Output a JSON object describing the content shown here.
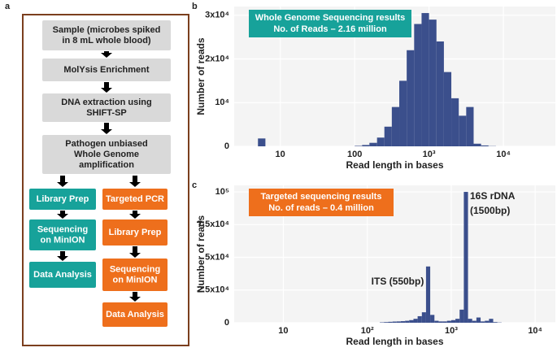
{
  "panel_labels": [
    "a",
    "b",
    "c"
  ],
  "flowchart": {
    "nodes": [
      {
        "lines": [
          "Sample (microbes spiked",
          "in 8 mL whole blood)"
        ]
      },
      {
        "lines": [
          "MolYsis Enrichment"
        ]
      },
      {
        "lines": [
          "DNA extraction using",
          "SHIFT-SP"
        ]
      },
      {
        "lines": [
          "Pathogen unbiased",
          "Whole Genome",
          "amplification"
        ]
      },
      {
        "lines": [
          "Library Prep"
        ]
      },
      {
        "lines": [
          "Sequencing",
          "on MinION"
        ]
      },
      {
        "lines": [
          "Data Analysis"
        ]
      },
      {
        "lines": [
          "Targeted PCR"
        ]
      },
      {
        "lines": [
          "Library Prep"
        ]
      },
      {
        "lines": [
          "Sequencing",
          "on MinION"
        ]
      },
      {
        "lines": [
          "Data Analysis"
        ]
      }
    ]
  },
  "chart_data": [
    {
      "type": "histogram",
      "x_label": "Read length in bases",
      "y_label": "Number of reads",
      "annotation_box": {
        "lines": [
          "Whole Genome Sequencing results",
          "No. of Reads – 2.16 million"
        ],
        "color": "#17a29a"
      },
      "color": "#3b4f8c",
      "log_x": true,
      "grid": true,
      "xlim": [
        2.4,
        50000
      ],
      "xticks": [
        10,
        100,
        {
          "value": 1000,
          "label": "10³"
        },
        {
          "value": 10000,
          "label": "10⁴"
        }
      ],
      "ylim": [
        0,
        32000
      ],
      "yticks": [
        0,
        {
          "value": 10000,
          "label": "10⁴"
        },
        {
          "value": 20000,
          "label": "2x10⁴"
        },
        {
          "value": 30000,
          "label": "3x10⁴"
        }
      ],
      "bins": [
        3.98,
        5.01,
        6.31,
        7.94,
        10,
        12.6,
        15.8,
        20,
        25.1,
        31.6,
        39.8,
        50.1,
        63.1,
        79.4,
        100,
        126,
        158,
        200,
        251,
        316,
        398,
        501,
        631,
        794,
        1000,
        1259,
        1585,
        1995,
        2512,
        3162,
        3981,
        5012,
        6310,
        7943,
        10000
      ],
      "counts": [
        0,
        1800,
        0,
        0,
        0,
        0,
        0,
        0,
        0,
        0,
        0,
        0,
        0,
        0,
        100,
        300,
        800,
        2000,
        4500,
        9000,
        15000,
        22000,
        28000,
        30500,
        29000,
        24000,
        17000,
        11000,
        7000,
        9000,
        600,
        200,
        50,
        0
      ]
    },
    {
      "type": "histogram",
      "x_label": "Read length in bases",
      "y_label": "Number of reads",
      "annotation_box": {
        "lines": [
          "Targeted sequencing results",
          "No. of reads – 0.4 million"
        ],
        "color": "#ee6f1c"
      },
      "annotations": [
        {
          "lines": [
            "ITS (550bp)"
          ]
        },
        {
          "lines": [
            "16S rDNA",
            "(1500bp)"
          ]
        }
      ],
      "color": "#3b4f8c",
      "log_x": true,
      "grid": true,
      "xlim": [
        2.6,
        17400
      ],
      "xticks": [
        10,
        {
          "value": 100,
          "label": "10²"
        },
        {
          "value": 1000,
          "label": "10³"
        },
        {
          "value": 10000,
          "label": "10⁴"
        }
      ],
      "ylim": [
        0,
        105000
      ],
      "yticks": [
        0,
        {
          "value": 25000,
          "label": "2.5x10⁴"
        },
        {
          "value": 50000,
          "label": "5x10⁴"
        },
        {
          "value": 75000,
          "label": "7.5x10⁴"
        },
        {
          "value": 100000,
          "label": "10⁵"
        }
      ],
      "bins": [
        100,
        112,
        126,
        141,
        158,
        178,
        200,
        224,
        251,
        282,
        316,
        355,
        398,
        447,
        501,
        562,
        631,
        708,
        794,
        891,
        1000,
        1122,
        1259,
        1413,
        1585,
        1778,
        1995,
        2239,
        2512,
        2818,
        3162,
        3548,
        3981
      ],
      "counts": [
        0,
        0,
        0,
        300,
        500,
        700,
        900,
        1000,
        1200,
        1500,
        2000,
        3000,
        5000,
        8000,
        43000,
        6000,
        1500,
        1000,
        1000,
        1500,
        2000,
        3000,
        10000,
        100000,
        3000,
        1500,
        4000,
        1000,
        1500,
        3000,
        500,
        200
      ]
    }
  ]
}
